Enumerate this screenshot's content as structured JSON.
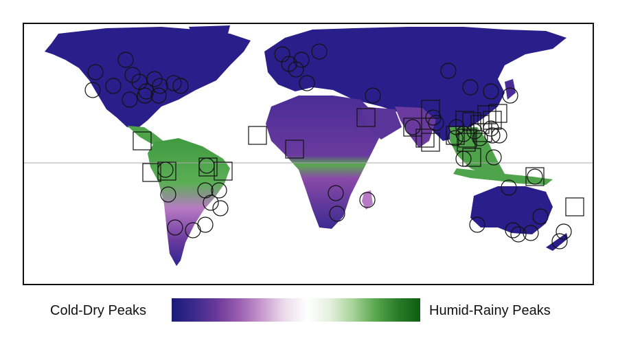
{
  "legend": {
    "left_label": "Cold-Dry Peaks",
    "right_label": "Humid-Rainy Peaks",
    "gradient_colors": [
      "#1b1b7a",
      "#3b2a8c",
      "#6a3a9a",
      "#9c5fb0",
      "#c89ad0",
      "#ecdcec",
      "#ffffff",
      "#e6f0df",
      "#a8d49a",
      "#5aa84f",
      "#2a7c2a",
      "#0f5e12"
    ]
  },
  "map": {
    "colors": {
      "cold_dry": "#2a1f8a",
      "mixed": "#7a3c9e",
      "light": "#c79ad1",
      "humid": "#4fa34a",
      "humid_dark": "#2f7d2a",
      "ocean": "#ffffff",
      "border": "#b9b9d9",
      "equator": "#aaaaaa"
    }
  }
}
